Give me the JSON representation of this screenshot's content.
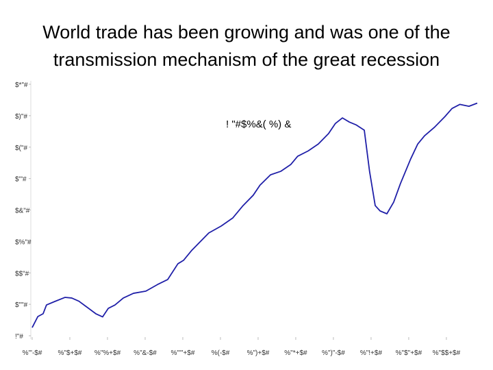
{
  "chart_data": {
    "type": "line",
    "title": [
      "World trade has been growing and was one of the",
      "transmission mechanism of the great recession"
    ],
    "annotation": "!  \"#$%&( %) &",
    "x": [
      0,
      0.15,
      0.29,
      0.38,
      0.6,
      0.87,
      1.05,
      1.24,
      1.42,
      1.69,
      1.87,
      2.02,
      2.2,
      2.42,
      2.69,
      3.02,
      3.33,
      3.6,
      3.87,
      4.02,
      4.24,
      4.51,
      4.69,
      5.02,
      5.33,
      5.6,
      5.87,
      6.05,
      6.33,
      6.6,
      6.87,
      7.05,
      7.33,
      7.6,
      7.87,
      8.05,
      8.24,
      8.42,
      8.6,
      8.82,
      8.96,
      9.11,
      9.24,
      9.42,
      9.6,
      9.78,
      10.05,
      10.24,
      10.42,
      10.69,
      10.96,
      11.15,
      11.36,
      11.6,
      11.82
    ],
    "series": [
      {
        "color": "#1f1fa8",
        "values": [
          92.6,
          96.1,
          97,
          99.8,
          100.9,
          102.2,
          102,
          101,
          99.4,
          97,
          96,
          98.7,
          99.8,
          102,
          103.5,
          104.2,
          106.3,
          107.9,
          112.9,
          114,
          117.2,
          120.5,
          122.7,
          124.9,
          127.5,
          131.4,
          134.7,
          137.9,
          141.2,
          142.3,
          144.5,
          147.1,
          148.8,
          151,
          154.3,
          157.5,
          159.3,
          158,
          157.1,
          155.4,
          142.3,
          131.4,
          129.7,
          128.8,
          132.5,
          138.4,
          146.2,
          151,
          153.6,
          156.4,
          159.7,
          162.3,
          163.6,
          163,
          164
        ]
      }
    ],
    "xlim": [
      0,
      11.82
    ],
    "xticks": [
      {
        "value": 0,
        "label": "%'\"-$#"
      },
      {
        "value": 1,
        "label": "%\"$+$#"
      },
      {
        "value": 2,
        "label": "%\"%+$#"
      },
      {
        "value": 3,
        "label": "%\"&-$#"
      },
      {
        "value": 4,
        "label": "%\"'\"+$#"
      },
      {
        "value": 5,
        "label": "%(-$#"
      },
      {
        "value": 6,
        "label": "%\")+$#"
      },
      {
        "value": 7,
        "label": "%\"*+$#"
      },
      {
        "value": 8,
        "label": "%\")\"-$#"
      },
      {
        "value": 9,
        "label": "%\"!+$#"
      },
      {
        "value": 10,
        "label": "%\"$\"+$#"
      },
      {
        "value": 11,
        "label": "%\"$$+$#"
      }
    ],
    "ylim": [
      90,
      170
    ],
    "yticks": [
      {
        "value": 90,
        "label": "!\"#"
      },
      {
        "value": 100,
        "label": "$\"\"#"
      },
      {
        "value": 110,
        "label": "$$\"#"
      },
      {
        "value": 120,
        "label": "$%\"#"
      },
      {
        "value": 130,
        "label": "$&\"#"
      },
      {
        "value": 140,
        "label": "$'\"#"
      },
      {
        "value": 150,
        "label": "$(\"#"
      },
      {
        "value": 160,
        "label": "$)\"#"
      },
      {
        "value": 170,
        "label": "$*\"#"
      }
    ]
  }
}
